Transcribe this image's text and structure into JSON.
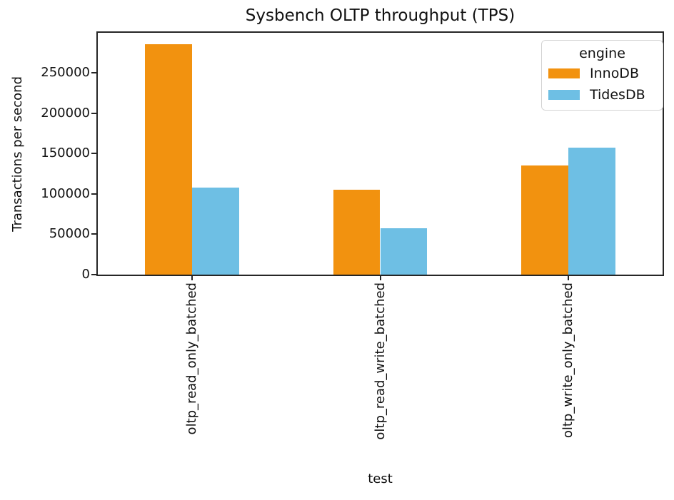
{
  "chart_data": {
    "type": "bar",
    "title": "Sysbench OLTP throughput (TPS)",
    "xlabel": "test",
    "ylabel": "Transactions per second",
    "legend_title": "engine",
    "legend_position": "upper right",
    "grid": false,
    "categories": [
      "oltp_read_only_batched",
      "oltp_read_write_batched",
      "oltp_write_only_batched"
    ],
    "series": [
      {
        "name": "InnoDB",
        "color": "#f2920f",
        "values": [
          285000,
          105000,
          135000
        ]
      },
      {
        "name": "TidesDB",
        "color": "#6ebfe4",
        "values": [
          108000,
          57000,
          157000
        ]
      }
    ],
    "yticks": [
      0,
      50000,
      100000,
      150000,
      200000,
      250000
    ],
    "ylim": [
      0,
      299500
    ],
    "bar_group_width_fraction": 0.5
  },
  "colors": {
    "spine": "#262626",
    "text": "#111111",
    "legend_border": "#d4d4d4",
    "background": "#ffffff"
  }
}
